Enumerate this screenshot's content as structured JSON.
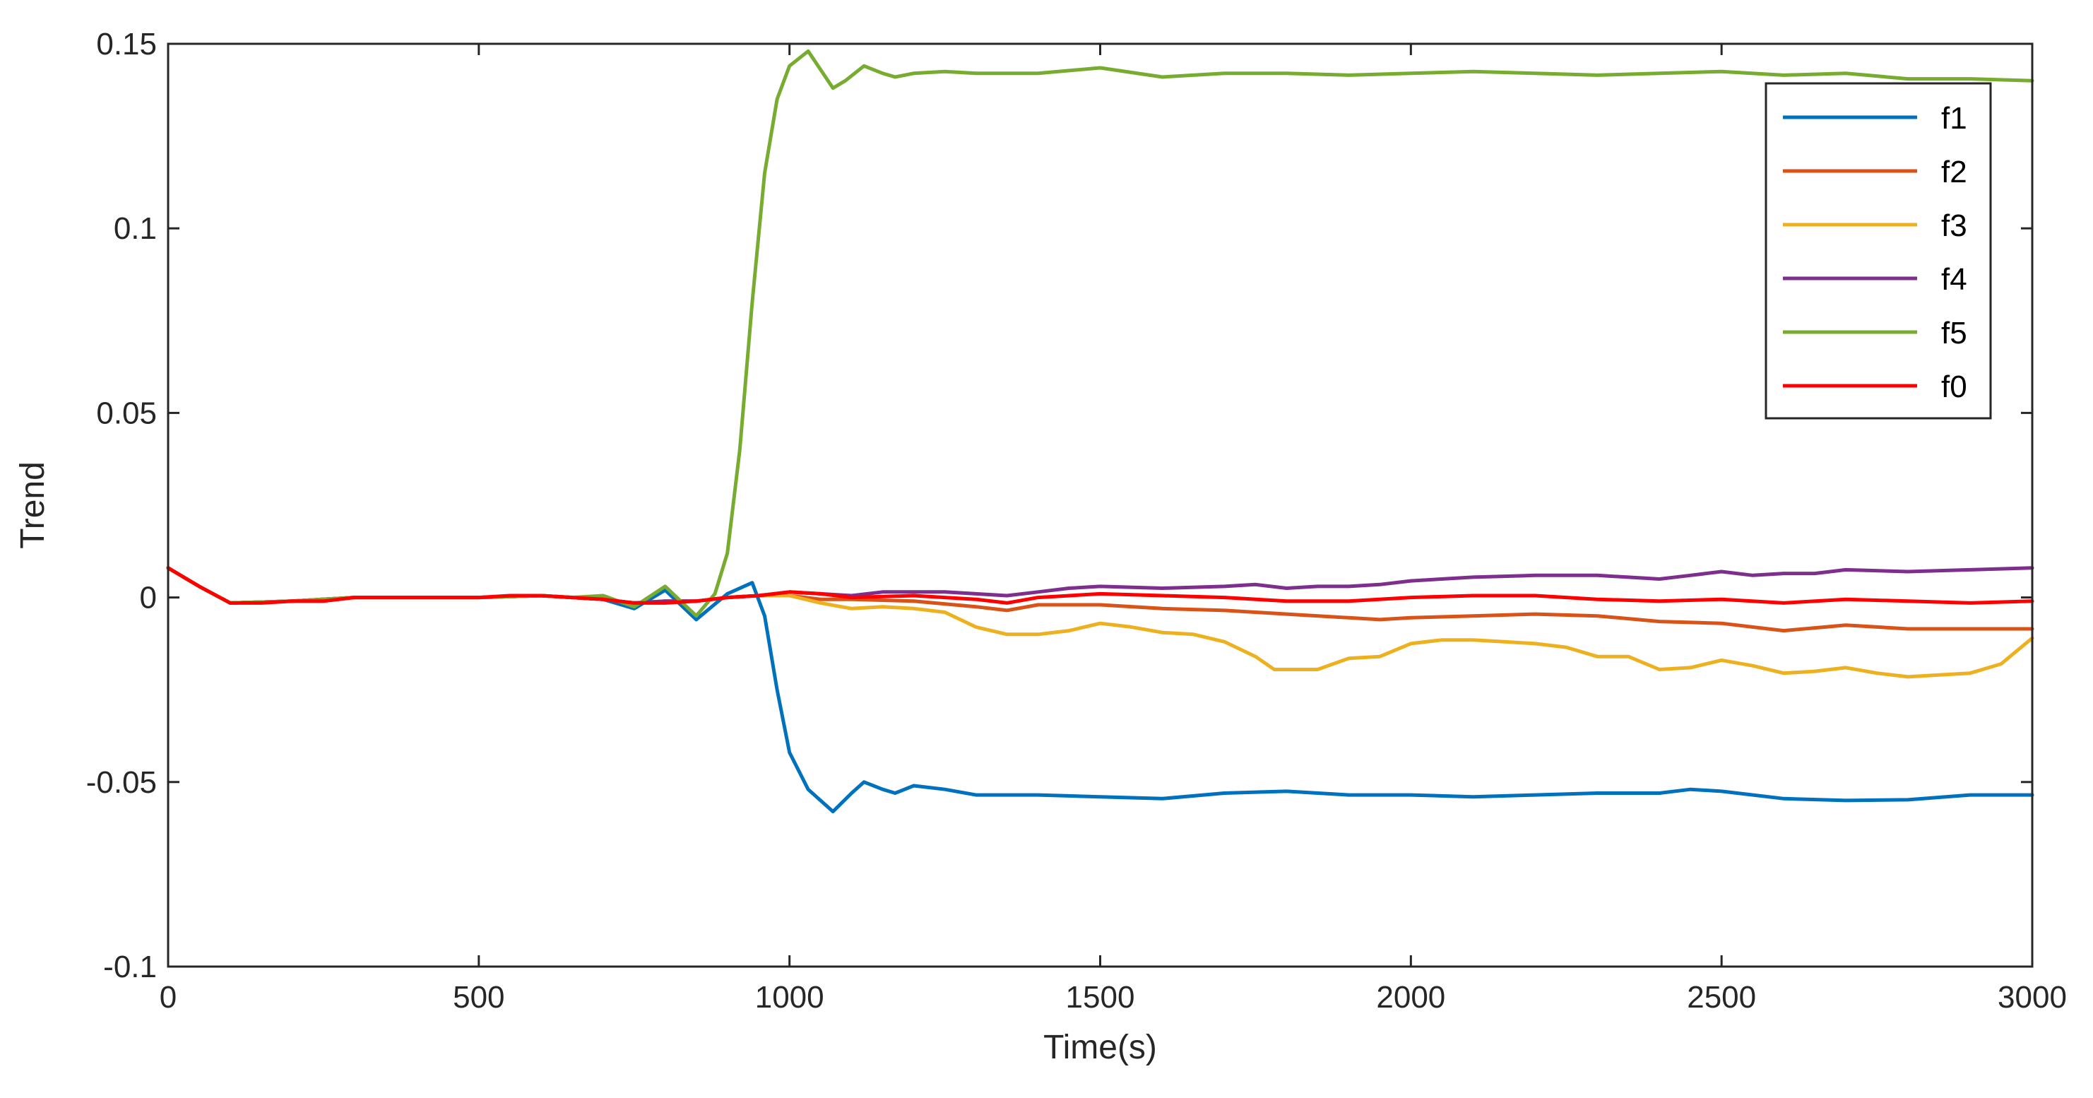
{
  "chart_data": {
    "type": "line",
    "title": "",
    "xlabel": "Time(s)",
    "ylabel": "Trend",
    "xlim": [
      0,
      3000
    ],
    "ylim": [
      -0.1,
      0.15
    ],
    "xticks": [
      0,
      500,
      1000,
      1500,
      2000,
      2500,
      3000
    ],
    "xtick_labels": [
      "0",
      "500",
      "1000",
      "1500",
      "2000",
      "2500",
      "3000"
    ],
    "yticks": [
      -0.1,
      -0.05,
      0,
      0.05,
      0.1,
      0.15
    ],
    "ytick_labels": [
      "-0.1",
      "-0.05",
      "0",
      "0.05",
      "0.1",
      "0.15"
    ],
    "grid": false,
    "legend_position": "top-right",
    "series": [
      {
        "name": "f1",
        "color": "#0072BD",
        "x": [
          0,
          50,
          100,
          200,
          300,
          400,
          500,
          600,
          650,
          700,
          750,
          800,
          850,
          900,
          940,
          960,
          980,
          1000,
          1030,
          1070,
          1100,
          1120,
          1150,
          1170,
          1200,
          1250,
          1300,
          1400,
          1500,
          1600,
          1700,
          1800,
          1900,
          2000,
          2100,
          2200,
          2300,
          2400,
          2450,
          2500,
          2600,
          2700,
          2800,
          2900,
          3000
        ],
        "y": [
          0.008,
          0.003,
          -0.0015,
          -0.001,
          0.0,
          0.0,
          0.0,
          0.0005,
          0.0,
          -0.0005,
          -0.003,
          0.002,
          -0.006,
          0.001,
          0.004,
          -0.005,
          -0.025,
          -0.042,
          -0.052,
          -0.058,
          -0.053,
          -0.05,
          -0.052,
          -0.053,
          -0.051,
          -0.052,
          -0.0535,
          -0.0535,
          -0.054,
          -0.0545,
          -0.053,
          -0.0525,
          -0.0535,
          -0.0535,
          -0.054,
          -0.0535,
          -0.053,
          -0.053,
          -0.052,
          -0.0525,
          -0.0545,
          -0.055,
          -0.0548,
          -0.0535,
          -0.0535
        ]
      },
      {
        "name": "f2",
        "color": "#D95319",
        "x": [
          0,
          50,
          100,
          200,
          300,
          400,
          500,
          600,
          700,
          750,
          800,
          850,
          900,
          950,
          1000,
          1050,
          1100,
          1200,
          1300,
          1350,
          1400,
          1500,
          1600,
          1700,
          1800,
          1900,
          1950,
          2000,
          2100,
          2200,
          2300,
          2400,
          2500,
          2600,
          2700,
          2800,
          2900,
          3000
        ],
        "y": [
          0.008,
          0.003,
          -0.0015,
          -0.001,
          0.0,
          0.0,
          0.0,
          0.0005,
          -0.0005,
          -0.0015,
          -0.001,
          -0.001,
          0.0,
          0.0005,
          0.0005,
          -0.0005,
          -0.0005,
          -0.001,
          -0.0025,
          -0.0035,
          -0.002,
          -0.002,
          -0.003,
          -0.0035,
          -0.0045,
          -0.0055,
          -0.006,
          -0.0055,
          -0.005,
          -0.0045,
          -0.005,
          -0.0065,
          -0.007,
          -0.009,
          -0.0075,
          -0.0085,
          -0.0085,
          -0.0085
        ]
      },
      {
        "name": "f3",
        "color": "#EDB120",
        "x": [
          0,
          50,
          100,
          200,
          300,
          400,
          500,
          600,
          700,
          750,
          800,
          850,
          900,
          950,
          1000,
          1050,
          1100,
          1150,
          1200,
          1250,
          1300,
          1350,
          1400,
          1450,
          1500,
          1550,
          1600,
          1650,
          1700,
          1750,
          1780,
          1800,
          1850,
          1900,
          1950,
          2000,
          2050,
          2100,
          2150,
          2200,
          2250,
          2300,
          2350,
          2400,
          2450,
          2500,
          2550,
          2600,
          2650,
          2700,
          2750,
          2800,
          2850,
          2900,
          2950,
          3000
        ],
        "y": [
          0.008,
          0.003,
          -0.0015,
          -0.001,
          0.0,
          0.0,
          0.0,
          0.0005,
          -0.0005,
          -0.0015,
          -0.001,
          -0.001,
          0.0,
          0.0005,
          0.0005,
          -0.0015,
          -0.003,
          -0.0025,
          -0.003,
          -0.004,
          -0.008,
          -0.01,
          -0.01,
          -0.009,
          -0.007,
          -0.008,
          -0.0095,
          -0.01,
          -0.012,
          -0.016,
          -0.0195,
          -0.0195,
          -0.0195,
          -0.0165,
          -0.016,
          -0.0125,
          -0.0115,
          -0.0115,
          -0.012,
          -0.0125,
          -0.0135,
          -0.016,
          -0.016,
          -0.0195,
          -0.019,
          -0.017,
          -0.0185,
          -0.0205,
          -0.02,
          -0.019,
          -0.0205,
          -0.0215,
          -0.021,
          -0.0205,
          -0.018,
          -0.011
        ]
      },
      {
        "name": "f4",
        "color": "#7E2F8E",
        "x": [
          0,
          50,
          100,
          200,
          300,
          400,
          500,
          600,
          700,
          750,
          800,
          850,
          900,
          950,
          1000,
          1050,
          1100,
          1150,
          1200,
          1250,
          1300,
          1350,
          1400,
          1450,
          1500,
          1600,
          1700,
          1750,
          1800,
          1850,
          1900,
          1950,
          2000,
          2100,
          2200,
          2300,
          2350,
          2400,
          2450,
          2500,
          2550,
          2600,
          2650,
          2700,
          2800,
          2900,
          3000
        ],
        "y": [
          0.008,
          0.003,
          -0.0015,
          -0.001,
          0.0,
          0.0,
          0.0,
          0.0005,
          -0.0005,
          -0.0015,
          -0.001,
          -0.001,
          0.0,
          0.0005,
          0.0015,
          0.001,
          0.0005,
          0.0015,
          0.0015,
          0.0015,
          0.001,
          0.0005,
          0.0015,
          0.0025,
          0.003,
          0.0025,
          0.003,
          0.0035,
          0.0025,
          0.003,
          0.003,
          0.0035,
          0.0045,
          0.0055,
          0.006,
          0.006,
          0.0055,
          0.005,
          0.006,
          0.007,
          0.006,
          0.0065,
          0.0065,
          0.0075,
          0.007,
          0.0075,
          0.008
        ]
      },
      {
        "name": "f5",
        "color": "#77AC30",
        "x": [
          0,
          50,
          100,
          200,
          300,
          400,
          500,
          600,
          650,
          700,
          750,
          800,
          850,
          880,
          900,
          920,
          940,
          960,
          980,
          1000,
          1030,
          1050,
          1070,
          1090,
          1120,
          1150,
          1170,
          1200,
          1250,
          1300,
          1400,
          1500,
          1600,
          1700,
          1800,
          1900,
          2000,
          2100,
          2200,
          2300,
          2400,
          2500,
          2600,
          2700,
          2800,
          2900,
          3000
        ],
        "y": [
          0.008,
          0.003,
          -0.0015,
          -0.001,
          0.0,
          0.0,
          0.0,
          0.0005,
          0.0,
          0.0005,
          -0.0025,
          0.003,
          -0.005,
          0.001,
          0.012,
          0.04,
          0.08,
          0.115,
          0.135,
          0.144,
          0.148,
          0.143,
          0.138,
          0.14,
          0.144,
          0.142,
          0.141,
          0.142,
          0.1425,
          0.142,
          0.142,
          0.1435,
          0.141,
          0.142,
          0.142,
          0.1415,
          0.142,
          0.1425,
          0.142,
          0.1415,
          0.142,
          0.1425,
          0.1415,
          0.142,
          0.1405,
          0.1405,
          0.14
        ]
      },
      {
        "name": "f0",
        "color": "#FF0000",
        "x": [
          0,
          50,
          100,
          150,
          200,
          250,
          300,
          350,
          400,
          450,
          500,
          550,
          600,
          650,
          700,
          750,
          800,
          850,
          900,
          950,
          1000,
          1050,
          1100,
          1200,
          1300,
          1350,
          1400,
          1500,
          1600,
          1700,
          1800,
          1900,
          2000,
          2100,
          2200,
          2300,
          2400,
          2500,
          2600,
          2700,
          2800,
          2900,
          3000
        ],
        "y": [
          0.008,
          0.003,
          -0.0015,
          -0.0015,
          -0.001,
          -0.001,
          0.0,
          0.0,
          0.0,
          0.0,
          0.0,
          0.0005,
          0.0005,
          0.0,
          -0.0005,
          -0.0015,
          -0.0015,
          -0.001,
          0.0,
          0.0005,
          0.0015,
          0.001,
          0.0,
          0.0005,
          -0.0005,
          -0.0015,
          0.0,
          0.001,
          0.0005,
          0.0,
          -0.001,
          -0.001,
          0.0,
          0.0005,
          0.0005,
          -0.0005,
          -0.001,
          -0.0005,
          -0.0015,
          -0.0005,
          -0.001,
          -0.0015,
          -0.001
        ]
      }
    ]
  }
}
